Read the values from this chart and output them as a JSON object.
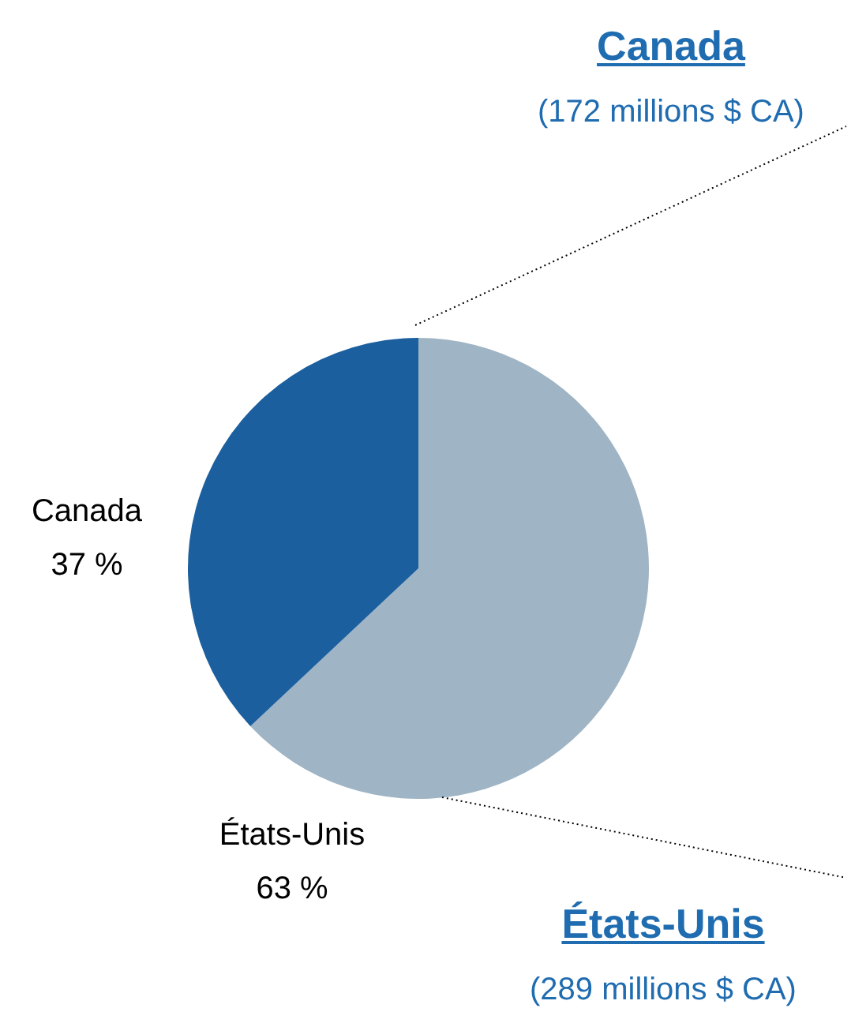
{
  "chart_data": {
    "type": "pie",
    "categories": [
      "États-Unis",
      "Canada"
    ],
    "values": [
      63,
      37
    ],
    "value_labels": [
      "63 %",
      "37 %"
    ],
    "colors": [
      "#9fb4c4",
      "#1b5f9e"
    ],
    "annotations": [
      "Canada",
      "(172 millions $ CA)",
      "États-Unis",
      "(289 millions $ CA)"
    ]
  }
}
